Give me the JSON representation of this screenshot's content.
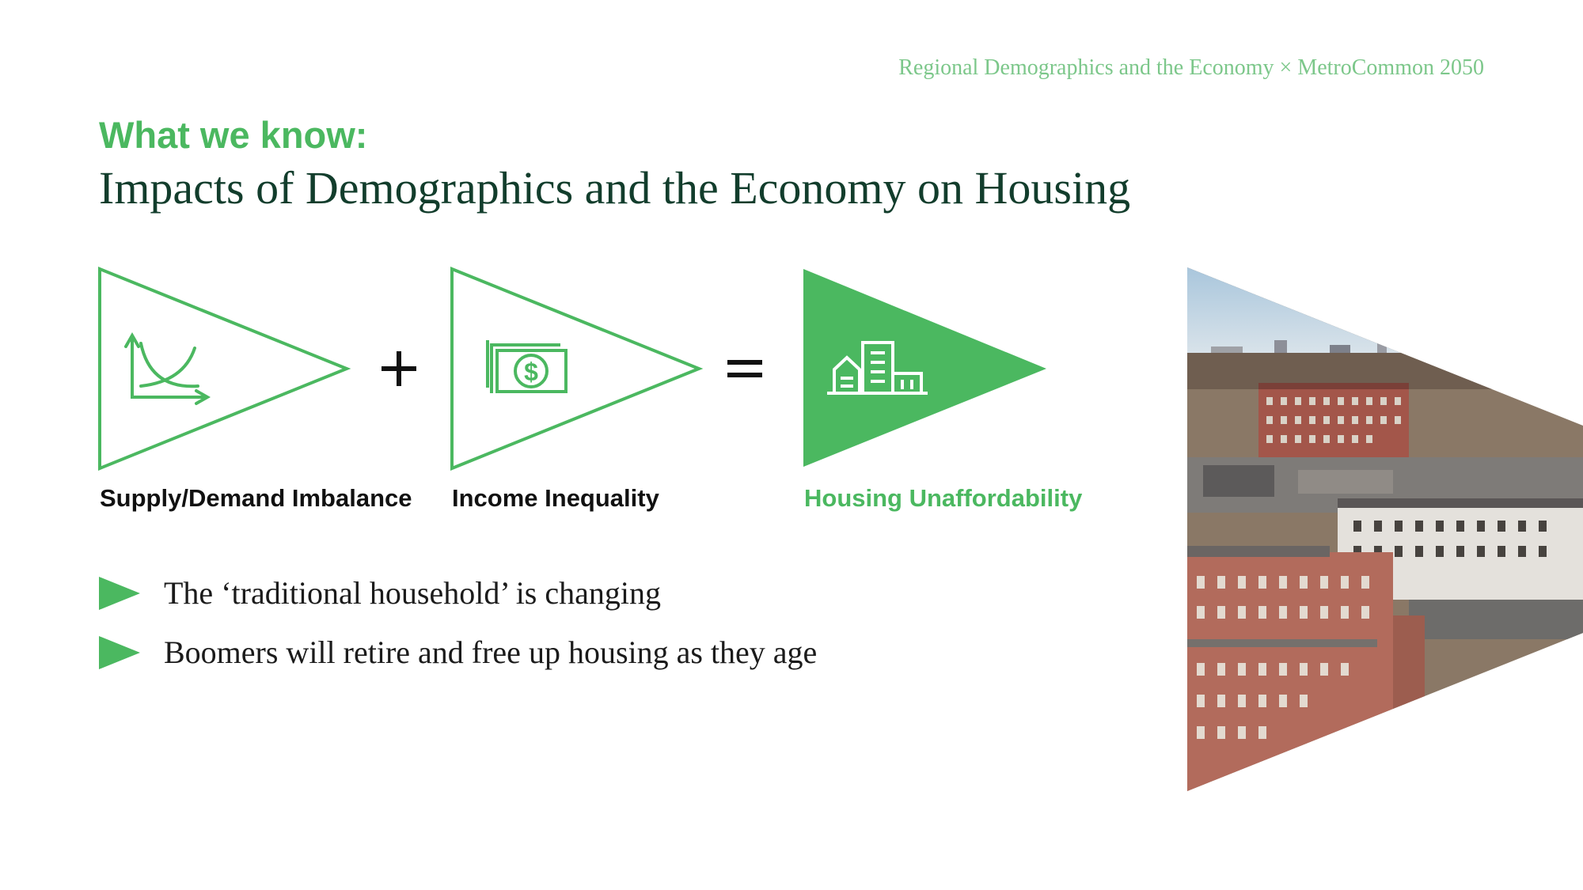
{
  "header": {
    "caption": "Regional Demographics and the Economy × MetroCommon 2050"
  },
  "slide": {
    "kicker": "What we know:",
    "title": "Impacts of Demographics and the Economy on Housing"
  },
  "equation": {
    "terms": [
      {
        "label": "Supply/Demand Imbalance",
        "icon": "supply-demand-chart-icon"
      },
      {
        "label": "Income Inequality",
        "icon": "dollar-bill-icon"
      }
    ],
    "plus": "+",
    "equals": "=",
    "result": {
      "label": "Housing Unaffordability",
      "icon": "buildings-icon"
    }
  },
  "bullets": [
    "The ‘traditional household’ is changing",
    "Boomers will retire and free up housing as they age"
  ],
  "photo": {
    "subject": "aerial-city-neighborhood-photo"
  },
  "colors": {
    "accent": "#4bb860",
    "caption": "#7cc78a",
    "title": "#123d2c",
    "text": "#111111"
  }
}
